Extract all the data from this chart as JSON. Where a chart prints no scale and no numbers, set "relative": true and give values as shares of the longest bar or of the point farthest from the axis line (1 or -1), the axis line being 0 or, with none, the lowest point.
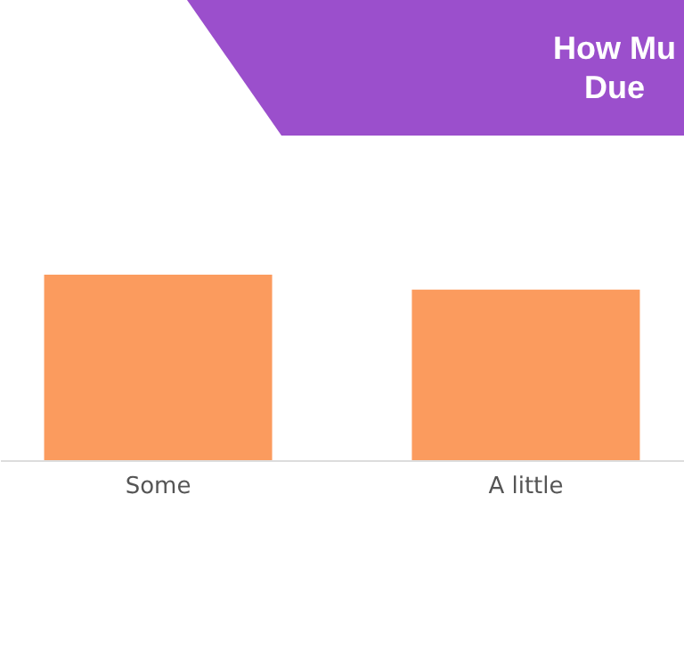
{
  "chart_data": {
    "type": "bar",
    "title": "How Mu\nDue",
    "relative": true,
    "categories": [
      "Some",
      "A little"
    ],
    "values": [
      1,
      0.92
    ],
    "color": "#fb9b5e"
  }
}
